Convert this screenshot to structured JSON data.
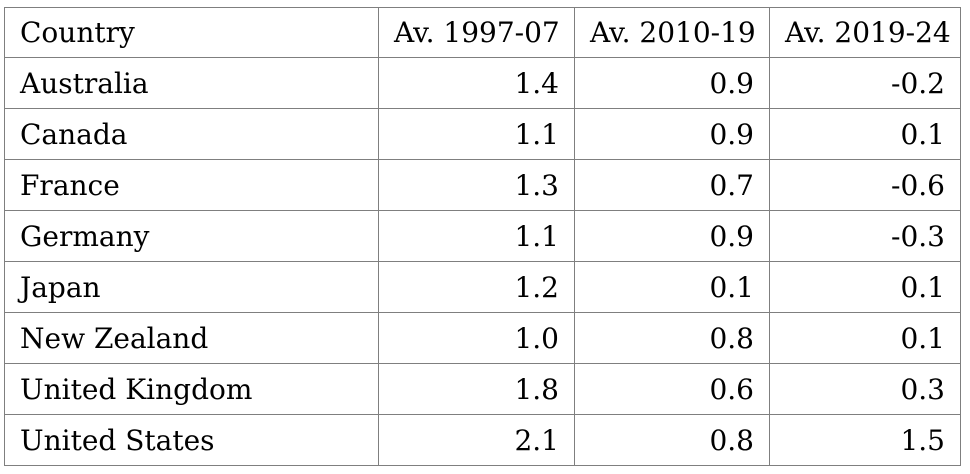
{
  "table": {
    "columns": [
      "Country",
      "Av. 1997-07",
      "Av. 2010-19",
      "Av. 2019-24"
    ],
    "rows": [
      {
        "country": "Australia",
        "av_1997_07": "1.4",
        "av_2010_19": "0.9",
        "av_2019_24": "-0.2"
      },
      {
        "country": "Canada",
        "av_1997_07": "1.1",
        "av_2010_19": "0.9",
        "av_2019_24": "0.1"
      },
      {
        "country": "France",
        "av_1997_07": "1.3",
        "av_2010_19": "0.7",
        "av_2019_24": "-0.6"
      },
      {
        "country": "Germany",
        "av_1997_07": "1.1",
        "av_2010_19": "0.9",
        "av_2019_24": "-0.3"
      },
      {
        "country": "Japan",
        "av_1997_07": "1.2",
        "av_2010_19": "0.1",
        "av_2019_24": "0.1"
      },
      {
        "country": "New Zealand",
        "av_1997_07": "1.0",
        "av_2010_19": "0.8",
        "av_2019_24": "0.1"
      },
      {
        "country": "United Kingdom",
        "av_1997_07": "1.8",
        "av_2010_19": "0.6",
        "av_2019_24": "0.3"
      },
      {
        "country": "United States",
        "av_1997_07": "2.1",
        "av_2010_19": "0.8",
        "av_2019_24": "1.5"
      }
    ],
    "colors": {
      "border": "#7f7f7f",
      "text": "#000000",
      "background": "#ffffff"
    }
  },
  "chart_data": {
    "type": "table",
    "title": "",
    "columns": [
      "Country",
      "Av. 1997-07",
      "Av. 2010-19",
      "Av. 2019-24"
    ],
    "rows": [
      [
        "Australia",
        1.4,
        0.9,
        -0.2
      ],
      [
        "Canada",
        1.1,
        0.9,
        0.1
      ],
      [
        "France",
        1.3,
        0.7,
        -0.6
      ],
      [
        "Germany",
        1.1,
        0.9,
        -0.3
      ],
      [
        "Japan",
        1.2,
        0.1,
        0.1
      ],
      [
        "New Zealand",
        1.0,
        0.8,
        0.1
      ],
      [
        "United Kingdom",
        1.8,
        0.6,
        0.3
      ],
      [
        "United States",
        2.1,
        0.8,
        1.5
      ]
    ]
  }
}
